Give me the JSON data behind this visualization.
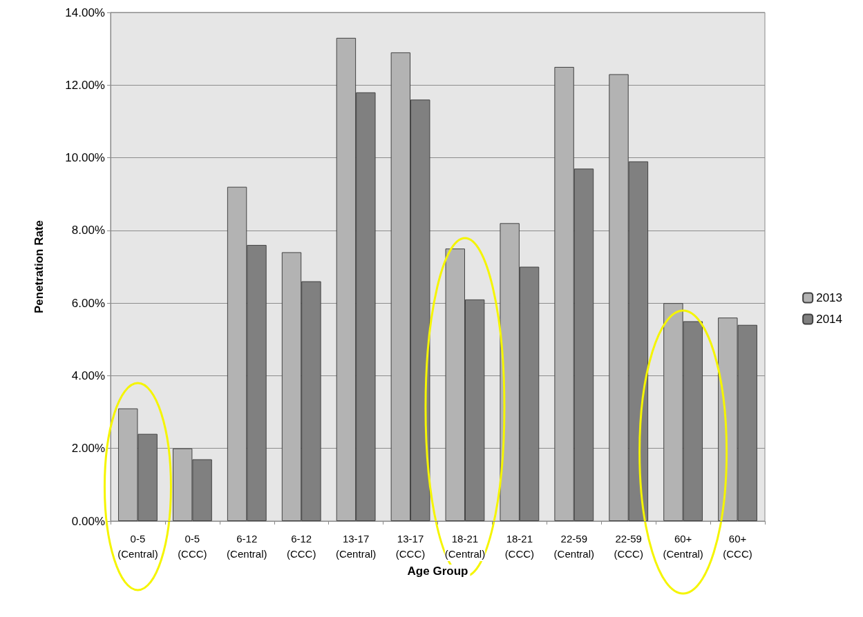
{
  "chart_data": {
    "type": "bar",
    "xlabel": "Age Group",
    "ylabel": "Penetration Rate",
    "categories": [
      "0-5 (Central)",
      "0-5 (CCC)",
      "6-12 (Central)",
      "6-12 (CCC)",
      "13-17 (Central)",
      "13-17 (CCC)",
      "18-21 (Central)",
      "18-21 (CCC)",
      "22-59 (Central)",
      "22-59 (CCC)",
      "60+ (Central)",
      "60+ (CCC)"
    ],
    "series": [
      {
        "name": "2013",
        "color": "#b3b3b3",
        "values": [
          3.1,
          2.0,
          9.2,
          7.4,
          13.3,
          12.9,
          7.5,
          8.2,
          12.5,
          12.3,
          6.0,
          5.6
        ]
      },
      {
        "name": "2014",
        "color": "#808080",
        "values": [
          2.4,
          1.7,
          7.6,
          6.6,
          11.8,
          11.6,
          6.1,
          7.0,
          9.7,
          9.9,
          5.5,
          5.4
        ]
      }
    ],
    "ylim": [
      0,
      14
    ],
    "yticks": [
      {
        "value": 0,
        "label": "0.00%"
      },
      {
        "value": 2,
        "label": "2.00%"
      },
      {
        "value": 4,
        "label": "4.00%"
      },
      {
        "value": 6,
        "label": "6.00%"
      },
      {
        "value": 8,
        "label": "8.00%"
      },
      {
        "value": 10,
        "label": "10.00%"
      },
      {
        "value": 12,
        "label": "12.00%"
      },
      {
        "value": 14,
        "label": "14.00%"
      }
    ],
    "grid": "y",
    "legend": "right"
  }
}
